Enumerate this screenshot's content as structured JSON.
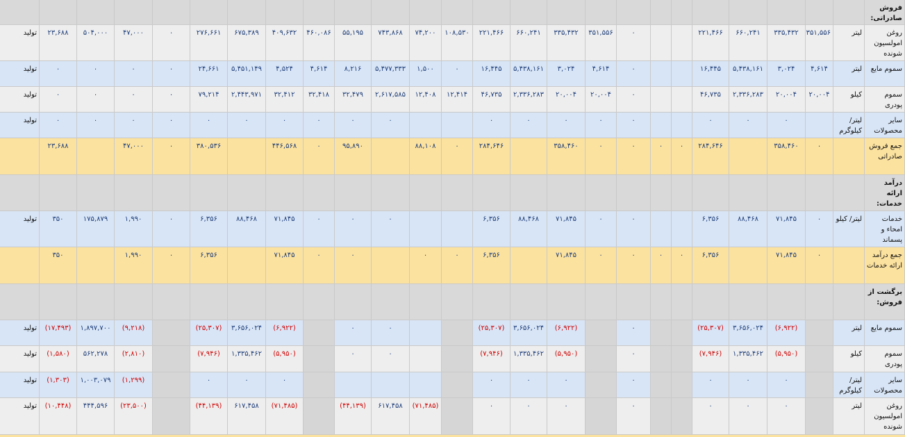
{
  "table": {
    "rows": [
      [
        "فروش صادراتی:"
      ],
      [
        "روغن امولسیون شونده",
        "لیتر",
        "۳۵۱,۵۵۶",
        "۳۳۵,۴۳۲",
        "۶۶۰,۲۴۱",
        "۲۲۱,۴۶۶",
        null,
        null,
        "۰",
        "۳۵۱,۵۵۶",
        "۳۳۵,۴۳۲",
        "۶۶۰,۲۴۱",
        "۲۲۱,۴۶۶",
        "۱۰۸,۵۳۰",
        "۷۴,۲۰۰",
        "۷۴۳,۸۶۸",
        "۵۵,۱۹۵",
        "۴۶۰,۰۸۶",
        "۴۰۹,۶۳۲",
        "۶۷۵,۳۸۹",
        "۲۷۶,۶۶۱",
        "۰",
        "۴۷,۰۰۰",
        "۵۰۴,۰۰۰",
        "۲۳,۶۸۸",
        "تولید"
      ],
      [
        "سموم مایع",
        "لیتر",
        "۴,۶۱۴",
        "۳,۰۲۴",
        "۵,۴۳۸,۱۶۱",
        "۱۶,۴۴۵",
        null,
        null,
        "۰",
        "۴,۶۱۴",
        "۳,۰۲۴",
        "۵,۴۳۸,۱۶۱",
        "۱۶,۴۴۵",
        "۰",
        "۱,۵۰۰",
        "۵,۴۷۷,۳۳۳",
        "۸,۲۱۶",
        "۴,۶۱۴",
        "۴,۵۲۴",
        "۵,۴۵۱,۱۴۹",
        "۲۴,۶۶۱",
        "۰",
        "۰",
        "۰",
        "۰",
        "تولید"
      ],
      [
        "سموم پودری",
        "کیلو",
        "۲۰,۰۰۴",
        "۲۰,۰۰۴",
        "۲,۳۳۶,۲۸۳",
        "۴۶,۷۳۵",
        null,
        null,
        "۰",
        "۲۰,۰۰۴",
        "۲۰,۰۰۴",
        "۲,۳۳۶,۲۸۳",
        "۴۶,۷۳۵",
        "۱۲,۴۱۴",
        "۱۲,۴۰۸",
        "۲,۶۱۷,۵۸۵",
        "۳۲,۴۷۹",
        "۳۲,۴۱۸",
        "۳۲,۴۱۲",
        "۲,۴۴۳,۹۷۱",
        "۷۹,۲۱۴",
        "۰",
        "۰",
        "۰",
        "۰",
        "تولید"
      ],
      [
        "سایر محصولات",
        "لیتر/ کیلوگرم",
        null,
        "۰",
        "۰",
        "۰",
        null,
        null,
        "۰",
        "۰",
        "۰",
        "۰",
        "۰",
        null,
        null,
        "۰",
        "۰",
        "۰",
        "۰",
        "۰",
        "۰",
        "۰",
        "۰",
        "۰",
        "۰",
        "تولید"
      ],
      [
        "جمع فروش صادراتی",
        null,
        "۰",
        "۳۵۸,۴۶۰",
        null,
        "۲۸۴,۶۴۶",
        "۰",
        "۰",
        "۰",
        "۰",
        "۳۵۸,۴۶۰",
        null,
        "۲۸۴,۶۴۶",
        "۰",
        "۸۸,۱۰۸",
        null,
        "۹۵,۸۹۰",
        "۰",
        "۴۴۶,۵۶۸",
        null,
        "۳۸۰,۵۳۶",
        "۰",
        "۴۷,۰۰۰",
        null,
        "۲۳,۶۸۸",
        null
      ],
      [
        "درآمد ارائه خدمات:"
      ],
      [
        "خدمات امحاء و پسماند",
        "لیتر/ کیلو",
        "۰",
        "۷۱,۸۴۵",
        "۸۸,۴۶۸",
        "۶,۳۵۶",
        null,
        null,
        "۰",
        "۰",
        "۷۱,۸۴۵",
        "۸۸,۴۶۸",
        "۶,۳۵۶",
        null,
        null,
        "۰",
        "۰",
        "۰",
        "۷۱,۸۴۵",
        "۸۸,۴۶۸",
        "۶,۳۵۶",
        "۰",
        "۱,۹۹۰",
        "۱۷۵,۸۷۹",
        "۳۵۰",
        "تولید"
      ],
      [
        "جمع درآمد ارائه خدمات",
        null,
        "۰",
        "۷۱,۸۴۵",
        null,
        "۶,۳۵۶",
        "۰",
        "۰",
        "۰",
        "۰",
        "۷۱,۸۴۵",
        null,
        "۶,۳۵۶",
        "۰",
        "۰",
        null,
        "۰",
        "۰",
        "۷۱,۸۴۵",
        null,
        "۶,۳۵۶",
        "۰",
        "۱,۹۹۰",
        null,
        "۳۵۰",
        null
      ],
      [
        "برگشت از فروش:"
      ],
      [
        "سموم مایع",
        "لیتر",
        null,
        "(۶,۹۲۲)",
        "۳,۶۵۶,۰۲۴",
        "(۲۵,۳۰۷)",
        null,
        null,
        "۰",
        null,
        "(۶,۹۲۲)",
        "۳,۶۵۶,۰۲۴",
        "(۲۵,۳۰۷)",
        null,
        null,
        "۰",
        "۰",
        null,
        "(۶,۹۲۲)",
        "۳,۶۵۶,۰۲۴",
        "(۲۵,۳۰۷)",
        null,
        "(۹,۲۱۸)",
        "۱,۸۹۷,۷۰۰",
        "(۱۷,۴۹۳)",
        "تولید"
      ],
      [
        "سموم پودری",
        "کیلو",
        null,
        "(۵,۹۵۰)",
        "۱,۳۳۵,۴۶۲",
        "(۷,۹۴۶)",
        null,
        null,
        "۰",
        null,
        "(۵,۹۵۰)",
        "۱,۳۳۵,۴۶۲",
        "(۷,۹۴۶)",
        null,
        null,
        "۰",
        "۰",
        null,
        "(۵,۹۵۰)",
        "۱,۳۳۵,۴۶۲",
        "(۷,۹۴۶)",
        null,
        "(۲,۸۱۰)",
        "۵۶۲,۲۷۸",
        "(۱,۵۸۰)",
        "تولید"
      ],
      [
        "سایر محصولات",
        "لیتر/ کیلوگرم",
        null,
        "۰",
        "۰",
        "۰",
        null,
        null,
        "۰",
        null,
        "۰",
        "۰",
        "۰",
        null,
        null,
        null,
        null,
        null,
        "۰",
        "۰",
        "۰",
        null,
        "(۱,۲۹۹)",
        "۱,۰۰۳,۰۷۹",
        "(۱,۳۰۳)",
        "تولید"
      ],
      [
        "روغن امولسیون شونده",
        "لیتر",
        null,
        "۰",
        "۰",
        "۰",
        null,
        null,
        "۰",
        null,
        "۰",
        "۰",
        "۰",
        null,
        "(۷۱,۴۸۵)",
        "۶۱۷,۴۵۸",
        "(۴۴,۱۳۹)",
        null,
        "(۷۱,۴۸۵)",
        "۶۱۷,۴۵۸",
        "(۴۴,۱۳۹)",
        null,
        "(۲۳,۵۰۰)",
        "۴۴۴,۵۹۶",
        "(۱۰,۴۴۸)",
        "تولید"
      ]
    ]
  }
}
